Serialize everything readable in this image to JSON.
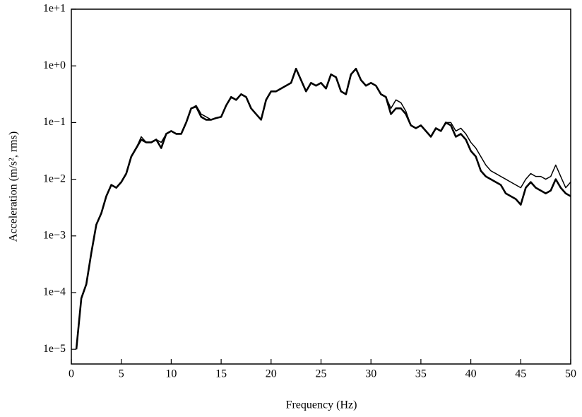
{
  "chart_data": {
    "type": "line",
    "xlabel": "Frequency (Hz)",
    "ylabel": "Acceleration (m/s², rms)",
    "ylog": true,
    "xlim": [
      0,
      50
    ],
    "ylim": [
      5.5e-06,
      10
    ],
    "xticks": [
      0,
      5,
      10,
      15,
      20,
      25,
      30,
      35,
      40,
      45,
      50
    ],
    "yticks": [
      {
        "value": 10,
        "label": "1e+1"
      },
      {
        "value": 1,
        "label": "1e+0"
      },
      {
        "value": 0.1,
        "label": "1e−1"
      },
      {
        "value": 0.01,
        "label": "1e−2"
      },
      {
        "value": 0.001,
        "label": "1e−3"
      },
      {
        "value": 0.0001,
        "label": "1e−4"
      },
      {
        "value": 1e-05,
        "label": "1e−5"
      }
    ],
    "x": [
      0.5,
      1,
      1.5,
      2,
      2.5,
      3,
      3.5,
      4,
      4.5,
      5,
      5.5,
      6,
      6.5,
      7,
      7.5,
      8,
      8.5,
      9,
      9.5,
      10,
      10.5,
      11,
      11.5,
      12,
      12.5,
      13,
      13.5,
      14,
      14.5,
      15,
      15.5,
      16,
      16.5,
      17,
      17.5,
      18,
      18.5,
      19,
      19.5,
      20,
      20.5,
      21,
      21.5,
      22,
      22.5,
      23,
      23.5,
      24,
      24.5,
      25,
      25.5,
      26,
      26.5,
      27,
      27.5,
      28,
      28.5,
      29,
      29.5,
      30,
      30.5,
      31,
      31.5,
      32,
      32.5,
      33,
      33.5,
      34,
      34.5,
      35,
      35.5,
      36,
      36.5,
      37,
      37.5,
      38,
      38.5,
      39,
      39.5,
      40,
      40.5,
      41,
      41.5,
      42,
      42.5,
      43,
      43.5,
      44,
      44.5,
      45,
      45.5,
      46,
      46.5,
      47,
      47.5,
      48,
      48.5,
      49,
      49.5,
      50
    ],
    "series": [
      {
        "color": "#000000",
        "values": [
          1e-05,
          7.94e-05,
          0.000141,
          0.000501,
          0.00158,
          0.00251,
          0.00501,
          0.00794,
          0.00708,
          0.00891,
          0.0126,
          0.0251,
          0.0355,
          0.0501,
          0.0447,
          0.0447,
          0.0501,
          0.0355,
          0.0631,
          0.0708,
          0.0631,
          0.0631,
          0.1,
          0.178,
          0.191,
          0.126,
          0.112,
          0.112,
          0.12,
          0.126,
          0.2,
          0.282,
          0.251,
          0.316,
          0.282,
          0.178,
          0.141,
          0.112,
          0.251,
          0.355,
          0.355,
          0.398,
          0.447,
          0.501,
          0.891,
          0.562,
          0.355,
          0.501,
          0.447,
          0.501,
          0.398,
          0.708,
          0.631,
          0.355,
          0.316,
          0.708,
          0.891,
          0.562,
          0.447,
          0.501,
          0.447,
          0.316,
          0.282,
          0.141,
          0.178,
          0.178,
          0.141,
          0.0891,
          0.0794,
          0.0891,
          0.0708,
          0.0562,
          0.0794,
          0.0708,
          0.1,
          0.0891,
          0.0562,
          0.0631,
          0.0501,
          0.0316,
          0.0251,
          0.0141,
          0.0112,
          0.01,
          0.00891,
          0.00794,
          0.00562,
          0.00501,
          0.00447,
          0.00355,
          0.00708,
          0.00891,
          0.00708,
          0.00631,
          0.00562,
          0.00631,
          0.01,
          0.00708,
          0.00562,
          0.00501
        ]
      },
      {
        "color": "#000000",
        "values": [
          1e-05,
          7.94e-05,
          0.000141,
          0.000501,
          0.00158,
          0.00251,
          0.00501,
          0.00794,
          0.00708,
          0.00891,
          0.0126,
          0.0251,
          0.0355,
          0.0562,
          0.0447,
          0.0447,
          0.0501,
          0.0447,
          0.0631,
          0.0708,
          0.0631,
          0.0631,
          0.1,
          0.178,
          0.2,
          0.141,
          0.126,
          0.112,
          0.12,
          0.126,
          0.2,
          0.282,
          0.251,
          0.316,
          0.282,
          0.178,
          0.141,
          0.112,
          0.251,
          0.355,
          0.355,
          0.398,
          0.447,
          0.501,
          0.891,
          0.562,
          0.355,
          0.501,
          0.447,
          0.501,
          0.398,
          0.708,
          0.631,
          0.355,
          0.316,
          0.708,
          0.891,
          0.562,
          0.447,
          0.501,
          0.447,
          0.316,
          0.282,
          0.178,
          0.251,
          0.224,
          0.158,
          0.0891,
          0.0794,
          0.0891,
          0.0708,
          0.0562,
          0.0794,
          0.0708,
          0.1,
          0.1,
          0.0708,
          0.0794,
          0.0631,
          0.0447,
          0.0355,
          0.0251,
          0.0178,
          0.0141,
          0.0126,
          0.0112,
          0.01,
          0.00891,
          0.00794,
          0.00708,
          0.01,
          0.0126,
          0.0112,
          0.0112,
          0.01,
          0.0112,
          0.0178,
          0.0112,
          0.00708,
          0.00891
        ]
      }
    ]
  }
}
